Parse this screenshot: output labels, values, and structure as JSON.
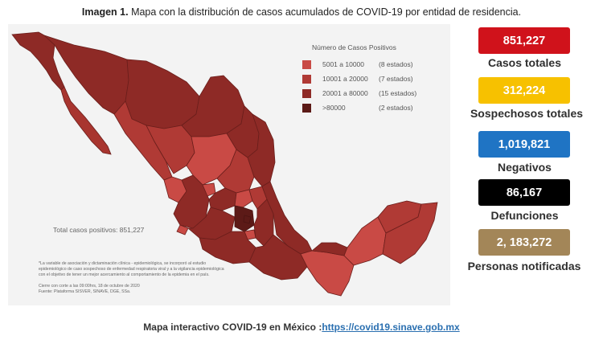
{
  "header": {
    "title_bold": "Imagen 1.",
    "title_rest": " Mapa con la distribución de casos acumulados de COVID-19 por entidad de residencia."
  },
  "legend": {
    "title": "Número de Casos Positivos",
    "items": [
      {
        "range": "5001 a  10000",
        "count": "(8 estados)",
        "color": "#c94a45"
      },
      {
        "range": "10001 a  20000",
        "count": "(7 estados)",
        "color": "#b03a35"
      },
      {
        "range": "20001 a  80000",
        "count": "(15 estados)",
        "color": "#8e2a26"
      },
      {
        "range": ">80000",
        "count": "(2 estados)",
        "color": "#5c1a17"
      }
    ]
  },
  "map": {
    "total_text": "Total casos positivos: 851,227",
    "footnote_lines": [
      "*La variable de asociación y dictaminación clínica - epidemiológica, se incorporó al estudio",
      "epidemiológico de caso sospechoso de enfermedad respiratoria viral y a la vigilancia epidemiológica",
      "con el objetivo de tener un mejor acercamiento al comportamiento de la epidemia en el país."
    ],
    "source_lines": [
      "Cierre con corte a las 09:00hrs, 18 de octubre de 2020",
      "Fuente: Plataforma SISVER, SINAVE, DGE, SSa."
    ]
  },
  "stats": [
    {
      "value": "851,227",
      "label": "Casos totales",
      "bg": "#d0121b",
      "fg": "#ffffff"
    },
    {
      "value": "312,224",
      "label": "Sospechosos totales",
      "bg": "#f7c100",
      "fg": "#ffffff"
    },
    {
      "value": "1,019,821",
      "label": "Negativos",
      "bg": "#1f74c4",
      "fg": "#ffffff"
    },
    {
      "value": "86,167",
      "label": "Defunciones",
      "bg": "#000000",
      "fg": "#ffffff"
    },
    {
      "value": "2, 183,272",
      "label": "Personas notificadas",
      "bg": "#a38658",
      "fg": "#ffffff"
    }
  ],
  "footer": {
    "text": "Mapa interactivo COVID-19 en México :",
    "link": "https://covid19.sinave.gob.mx"
  }
}
